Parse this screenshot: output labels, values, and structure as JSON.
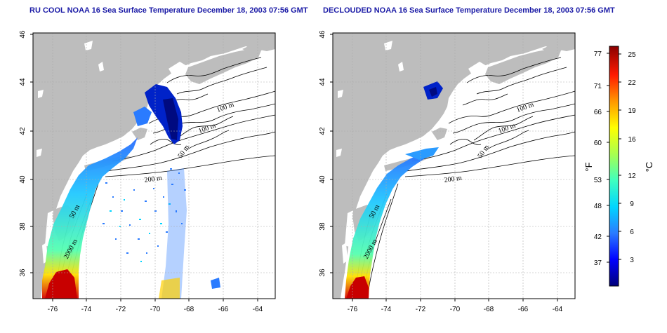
{
  "titles": {
    "left": "RU COOL NOAA 16 Sea Surface Temperature December 18, 2003 07:56 GMT",
    "right": "DECLOUDED NOAA 16 Sea Surface Temperature December 18, 2003 07:56 GMT"
  },
  "map_axes": {
    "lon_ticks": [
      "-76",
      "-74",
      "-72",
      "-70",
      "-68",
      "-66",
      "-64"
    ],
    "lat_ticks": [
      "36",
      "38",
      "40",
      "42",
      "44",
      "46"
    ]
  },
  "contour_labels": {
    "left": [
      "100 m",
      "100 m",
      "50 m",
      "200 m",
      "50 m",
      "2000 m"
    ],
    "right": [
      "100 m",
      "100 m",
      "50 m",
      "200 m",
      "50 m",
      "2000 m"
    ]
  },
  "colorbar": {
    "fahrenheit_unit": "°F",
    "celsius_unit": "°C",
    "fahrenheit_ticks": [
      "77",
      "71",
      "66",
      "60",
      "53",
      "48",
      "42",
      "37"
    ],
    "celsius_ticks": [
      "25",
      "22",
      "19",
      "16",
      "12",
      "9",
      "6",
      "3"
    ],
    "colors": [
      "#00007a",
      "#0000ff",
      "#2a7bff",
      "#00d5ff",
      "#3fffbf",
      "#a8ff4f",
      "#ffff00",
      "#ff9800",
      "#ff1a00",
      "#8a0000"
    ]
  },
  "colors": {
    "land": "#bdbdbd",
    "ocean": "#ffffff",
    "title": "#1a1aa6"
  }
}
